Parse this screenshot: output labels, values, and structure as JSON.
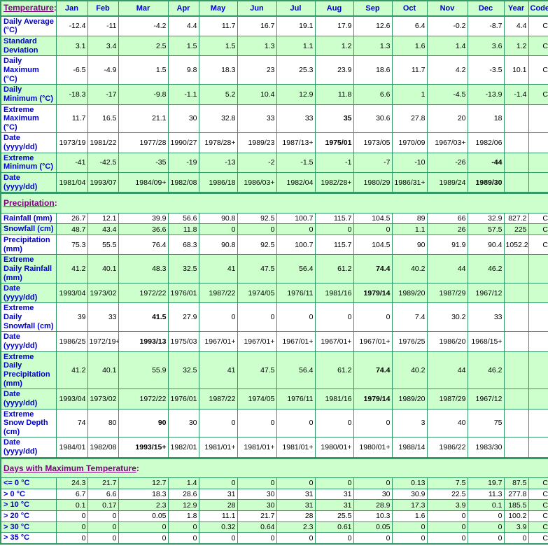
{
  "colors": {
    "row_green": "#ccffcc",
    "row_white": "#ffffff",
    "border_green": "#339966",
    "label_blue": "#0000cc",
    "section_purple": "#800080",
    "text": "#000000"
  },
  "chart_data": {
    "type": "table",
    "header": {
      "section_label": "Temperature",
      "columns": [
        "Jan",
        "Feb",
        "Mar",
        "Apr",
        "May",
        "Jun",
        "Jul",
        "Aug",
        "Sep",
        "Oct",
        "Nov",
        "Dec",
        "Year",
        "Code"
      ]
    },
    "sections": [
      {
        "title": "",
        "rows": [
          {
            "label": "Daily Average (°C)",
            "bg": "white",
            "cells": [
              "-12.4",
              "-11",
              "-4.2",
              "4.4",
              "11.7",
              "16.7",
              "19.1",
              "17.9",
              "12.6",
              "6.4",
              "-0.2",
              "-8.7",
              "4.4",
              "C"
            ]
          },
          {
            "label": "Standard Deviation",
            "bg": "green",
            "cells": [
              "3.1",
              "3.4",
              "2.5",
              "1.5",
              "1.5",
              "1.3",
              "1.1",
              "1.2",
              "1.3",
              "1.6",
              "1.4",
              "3.6",
              "1.2",
              "C"
            ]
          },
          {
            "label": "Daily Maximum (°C)",
            "bg": "white",
            "cells": [
              "-6.5",
              "-4.9",
              "1.5",
              "9.8",
              "18.3",
              "23",
              "25.3",
              "23.9",
              "18.6",
              "11.7",
              "4.2",
              "-3.5",
              "10.1",
              "C"
            ]
          },
          {
            "label": "Daily Minimum (°C)",
            "bg": "green",
            "cells": [
              "-18.3",
              "-17",
              "-9.8",
              "-1.1",
              "5.2",
              "10.4",
              "12.9",
              "11.8",
              "6.6",
              "1",
              "-4.5",
              "-13.9",
              "-1.4",
              "C"
            ]
          },
          {
            "label": "Extreme Maximum (°C)",
            "bg": "white",
            "cells": [
              "11.7",
              "16.5",
              "21.1",
              "30",
              "32.8",
              "33",
              "33",
              {
                "v": "35",
                "bold": true
              },
              "30.6",
              "27.8",
              "20",
              "18",
              "",
              ""
            ]
          },
          {
            "label": "Date (yyyy/dd)",
            "bg": "white",
            "cells": [
              "1973/19",
              "1981/22",
              "1977/28",
              "1990/27",
              "1978/28+",
              "1989/23",
              "1987/13+",
              {
                "v": "1975/01",
                "bold": true
              },
              "1973/05",
              "1970/09",
              "1967/03+",
              "1982/06",
              "",
              ""
            ]
          },
          {
            "label": "Extreme Minimum (°C)",
            "bg": "green",
            "cells": [
              "-41",
              "-42.5",
              "-35",
              "-19",
              "-13",
              "-2",
              "-1.5",
              "-1",
              "-7",
              "-10",
              "-26",
              {
                "v": "-44",
                "bold": true
              },
              "",
              ""
            ]
          },
          {
            "label": "Date (yyyy/dd)",
            "bg": "green",
            "cells": [
              "1981/04",
              "1993/07",
              "1984/09+",
              "1982/08",
              "1986/18",
              "1986/03+",
              "1982/04",
              "1982/28+",
              "1980/29",
              "1986/31+",
              "1989/24",
              {
                "v": "1989/30",
                "bold": true
              },
              "",
              ""
            ]
          }
        ]
      },
      {
        "title": "Precipitation",
        "rows": [
          {
            "label": "Rainfall (mm)",
            "bg": "white",
            "cells": [
              "26.7",
              "12.1",
              "39.9",
              "56.6",
              "90.8",
              "92.5",
              "100.7",
              "115.7",
              "104.5",
              "89",
              "66",
              "32.9",
              "827.2",
              "C"
            ]
          },
          {
            "label": "Snowfall (cm)",
            "bg": "green",
            "cells": [
              "48.7",
              "43.4",
              "36.6",
              "11.8",
              "0",
              "0",
              "0",
              "0",
              "0",
              "1.1",
              "26",
              "57.5",
              "225",
              "C"
            ]
          },
          {
            "label": "Precipitation (mm)",
            "bg": "white",
            "cells": [
              "75.3",
              "55.5",
              "76.4",
              "68.3",
              "90.8",
              "92.5",
              "100.7",
              "115.7",
              "104.5",
              "90",
              "91.9",
              "90.4",
              "1052.2",
              "C"
            ]
          },
          {
            "label": "Extreme Daily Rainfall (mm)",
            "bg": "green",
            "cells": [
              "41.2",
              "40.1",
              "48.3",
              "32.5",
              "41",
              "47.5",
              "56.4",
              "61.2",
              {
                "v": "74.4",
                "bold": true
              },
              "40.2",
              "44",
              "46.2",
              "",
              ""
            ]
          },
          {
            "label": "Date (yyyy/dd)",
            "bg": "green",
            "cells": [
              "1993/04",
              "1973/02",
              "1972/22",
              "1976/01",
              "1987/22",
              "1974/05",
              "1976/11",
              "1981/16",
              {
                "v": "1979/14",
                "bold": true
              },
              "1989/20",
              "1987/29",
              "1967/12",
              "",
              ""
            ]
          },
          {
            "label": "Extreme Daily Snowfall (cm)",
            "bg": "white",
            "cells": [
              "39",
              "33",
              {
                "v": "41.5",
                "bold": true
              },
              "27.9",
              "0",
              "0",
              "0",
              "0",
              "0",
              "7.4",
              "30.2",
              "33",
              "",
              ""
            ]
          },
          {
            "label": "Date (yyyy/dd)",
            "bg": "white",
            "cells": [
              "1986/25",
              "1972/19+",
              {
                "v": "1993/13",
                "bold": true
              },
              "1975/03",
              "1967/01+",
              "1967/01+",
              "1967/01+",
              "1967/01+",
              "1967/01+",
              "1976/25",
              "1986/20",
              "1968/15+",
              "",
              ""
            ]
          },
          {
            "label": "Extreme Daily Precipitation (mm)",
            "bg": "green",
            "cells": [
              "41.2",
              "40.1",
              "55.9",
              "32.5",
              "41",
              "47.5",
              "56.4",
              "61.2",
              {
                "v": "74.4",
                "bold": true
              },
              "40.2",
              "44",
              "46.2",
              "",
              ""
            ]
          },
          {
            "label": "Date (yyyy/dd)",
            "bg": "green",
            "cells": [
              "1993/04",
              "1973/02",
              "1972/22",
              "1976/01",
              "1987/22",
              "1974/05",
              "1976/11",
              "1981/16",
              {
                "v": "1979/14",
                "bold": true
              },
              "1989/20",
              "1987/29",
              "1967/12",
              "",
              ""
            ]
          },
          {
            "label": "Extreme Snow Depth (cm)",
            "bg": "white",
            "cells": [
              "74",
              "80",
              {
                "v": "90",
                "bold": true
              },
              "30",
              "0",
              "0",
              "0",
              "0",
              "0",
              "3",
              "40",
              "75",
              "",
              ""
            ]
          },
          {
            "label": "Date (yyyy/dd)",
            "bg": "white",
            "cells": [
              "1984/01",
              "1982/08",
              {
                "v": "1993/15+",
                "bold": true
              },
              "1982/01",
              "1981/01+",
              "1981/01+",
              "1981/01+",
              "1980/01+",
              "1980/01+",
              "1988/14",
              "1986/22",
              "1983/30",
              "",
              ""
            ]
          }
        ]
      },
      {
        "title": "Days with Maximum Temperature",
        "rows": [
          {
            "label": "<= 0 °C",
            "bg": "green",
            "cells": [
              "24.3",
              "21.7",
              "12.7",
              "1.4",
              "0",
              "0",
              "0",
              "0",
              "0",
              "0.13",
              "7.5",
              "19.7",
              "87.5",
              "C"
            ]
          },
          {
            "label": "> 0 °C",
            "bg": "white",
            "cells": [
              "6.7",
              "6.6",
              "18.3",
              "28.6",
              "31",
              "30",
              "31",
              "31",
              "30",
              "30.9",
              "22.5",
              "11.3",
              "277.8",
              "C"
            ]
          },
          {
            "label": "> 10 °C",
            "bg": "green",
            "cells": [
              "0.1",
              "0.17",
              "2.3",
              "12.9",
              "28",
              "30",
              "31",
              "31",
              "28.9",
              "17.3",
              "3.9",
              "0.1",
              "185.5",
              "C"
            ]
          },
          {
            "label": "> 20 °C",
            "bg": "white",
            "cells": [
              "0",
              "0",
              "0.05",
              "1.8",
              "11.1",
              "21.7",
              "28",
              "25.5",
              "10.3",
              "1.6",
              "0",
              "0",
              "100.2",
              "C"
            ]
          },
          {
            "label": "> 30 °C",
            "bg": "green",
            "cells": [
              "0",
              "0",
              "0",
              "0",
              "0.32",
              "0.64",
              "2.3",
              "0.61",
              "0.05",
              "0",
              "0",
              "0",
              "3.9",
              "C"
            ]
          },
          {
            "label": "> 35 °C",
            "bg": "white",
            "cells": [
              "0",
              "0",
              "0",
              "0",
              "0",
              "0",
              "0",
              "0",
              "0",
              "0",
              "0",
              "0",
              "0",
              "C"
            ]
          }
        ]
      }
    ]
  }
}
